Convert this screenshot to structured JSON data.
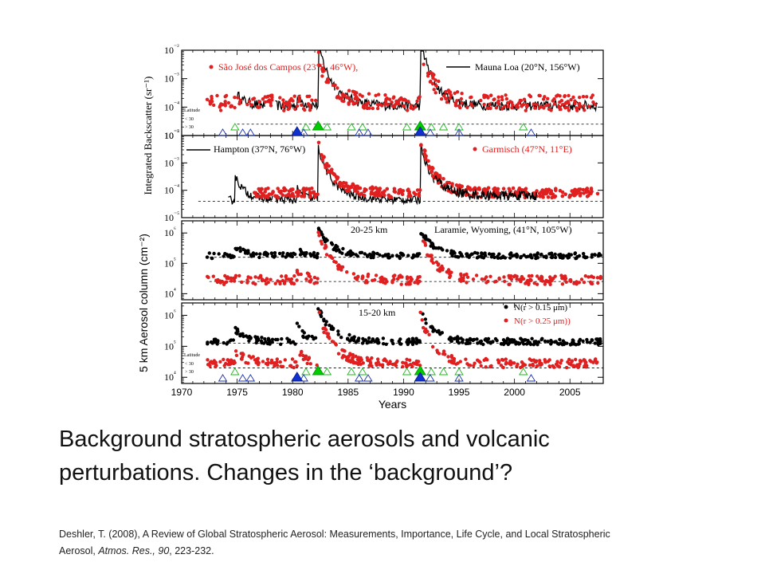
{
  "slide": {
    "caption_line1": "Background stratospheric aerosols and volcanic",
    "caption_line2": "perturbations.   Changes in the ‘background’?",
    "citation_line1": "Deshler, T. (2008), A Review of Global Stratospheric Aerosol: Measurements,  Importance, Life Cycle, and Local Stratospheric",
    "citation_line2_pre": "Aerosol, ",
    "citation_journal": "Atmos. Res., 90",
    "citation_pages": ", 223-232."
  },
  "chart_data": [
    {
      "type": "scatter",
      "panel": "lidar-tropics",
      "ylabel": "Integrated Backscatter (sr⁻¹)",
      "legend": [
        "São José dos Campos (23°S, 46°W),",
        "Mauna Loa (20°N, 156°W)"
      ],
      "latitude_label": "Latitude",
      "latitude_rows": [
        "< 30",
        "> 30"
      ],
      "yticks": [
        "10⁻²",
        "10⁻³",
        "10⁻⁴",
        "10⁻⁵"
      ],
      "ylim_log10": [
        -5,
        -2
      ],
      "colors": {
        "series_red": "#e02020",
        "series_black": "#000000"
      },
      "background_level_log10": -4.6
    },
    {
      "type": "scatter",
      "panel": "lidar-midlatitude",
      "legend": [
        "Hampton (37°N, 76°W)",
        "Garmisch (47°N, 11°E)"
      ],
      "yticks": [
        "10⁻²",
        "10⁻³",
        "10⁻⁴",
        "10⁻⁵"
      ],
      "ylim_log10": [
        -5,
        -2
      ],
      "background_level_log10": -4.4
    },
    {
      "type": "scatter",
      "panel": "balloon-20-25km",
      "title": "20-25 km",
      "legend": [
        "Laramie, Wyoming, (41°N, 105°W)"
      ],
      "ylabel": "5 km Aerosol column (cm⁻²)",
      "yticks": [
        "10⁶",
        "10⁵",
        "10⁴"
      ],
      "ylim_log10": [
        3.8,
        6.4
      ],
      "background_levels_log10": [
        5.2,
        4.4
      ]
    },
    {
      "type": "scatter",
      "panel": "balloon-15-20km",
      "title": "15-20 km",
      "legend": [
        "N(r > 0.15 μm)",
        "N(r > 0.25 μm))"
      ],
      "latitude_label": "Latitude",
      "latitude_rows": [
        "< 30",
        "> 30"
      ],
      "yticks": [
        "10⁶",
        "10⁵",
        "10⁴"
      ],
      "ylim_log10": [
        3.8,
        6.4
      ],
      "background_levels_log10": [
        5.1,
        4.3
      ]
    }
  ],
  "axes": {
    "xlabel": "Years",
    "xlim": [
      1970,
      2008
    ],
    "xticks": [
      "1970",
      "1975",
      "1980",
      "1985",
      "1990",
      "1995",
      "2000",
      "2005"
    ]
  },
  "eruptions": {
    "filled_large": [
      1982.3,
      1991.5
    ],
    "filled_blue_large": [
      1980.4,
      1991.5
    ],
    "tropical_open": [
      1974.8,
      1981.2,
      1982.2,
      1983.1,
      1985.3,
      1986.3,
      1990.3,
      1992.5,
      1993.6,
      1995.0,
      2000.8
    ],
    "extratropical_open": [
      1973.7,
      1975.5,
      1976.2,
      1981.0,
      1986.0,
      1986.8,
      1992.4,
      1995.0,
      2001.5
    ]
  }
}
